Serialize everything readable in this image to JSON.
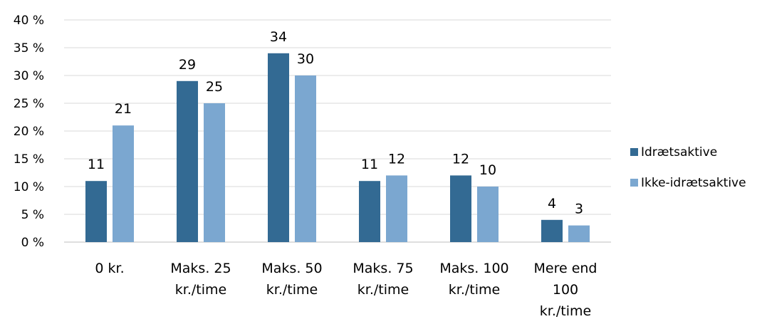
{
  "chart_data": {
    "type": "bar",
    "title": "",
    "xlabel": "",
    "ylabel": "",
    "ylim": [
      0,
      40
    ],
    "y_ticks": [
      "0 %",
      "5 %",
      "10 %",
      "15 %",
      "20 %",
      "25 %",
      "30 %",
      "35 %",
      "40 %"
    ],
    "y_tick_values": [
      0,
      5,
      10,
      15,
      20,
      25,
      30,
      35,
      40
    ],
    "categories": [
      [
        "0 kr."
      ],
      [
        "Maks. 25",
        "kr./time"
      ],
      [
        "Maks. 50",
        "kr./time"
      ],
      [
        "Maks. 75",
        "kr./time"
      ],
      [
        "Maks. 100",
        "kr./time"
      ],
      [
        "Mere end",
        "100",
        "kr./time"
      ]
    ],
    "series": [
      {
        "name": "Idrætsaktive",
        "values": [
          11,
          29,
          34,
          11,
          12,
          4
        ],
        "color": "#336a93"
      },
      {
        "name": "Ikke-idrætsaktive",
        "values": [
          21,
          25,
          30,
          12,
          10,
          3
        ],
        "color": "#7ba7d0"
      }
    ],
    "grid": true,
    "legend_position": "right"
  }
}
